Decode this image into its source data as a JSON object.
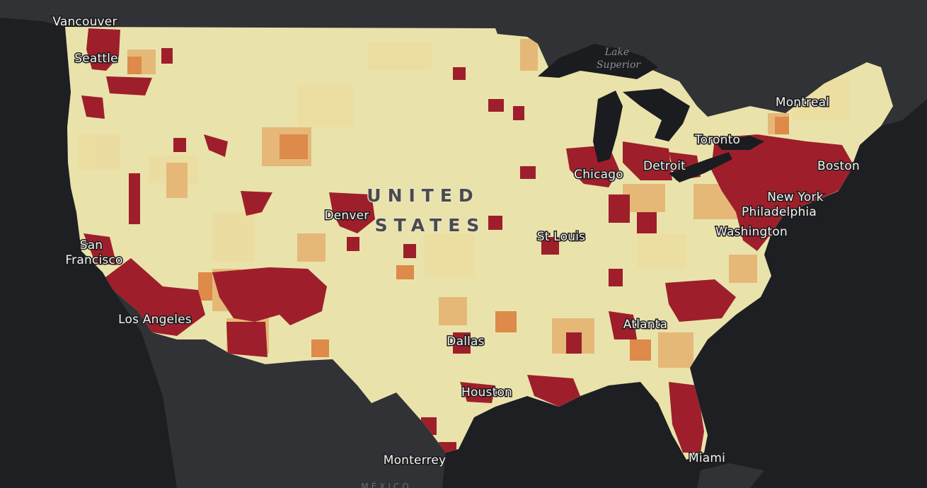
{
  "map": {
    "colors": {
      "background_ocean": "#1d1f23",
      "foreign_land": "#303236",
      "us_base": "#e9e3ab",
      "class_low": "#ecdda0",
      "class_mid": "#e5b878",
      "class_high": "#dd8a4a",
      "class_top": "#9e1f2b",
      "lakes": "#1a1c20"
    },
    "country_label": {
      "line1": "UNITED",
      "line2": "STATES"
    },
    "water_labels": {
      "lake_superior_line1": "Lake",
      "lake_superior_line2": "Superior"
    },
    "foreign_labels": {
      "mexico": "MÉXICO"
    },
    "cities": {
      "vancouver": "Vancouver",
      "seattle": "Seattle",
      "san_francisco_line1": "San",
      "san_francisco_line2": "Francisco",
      "los_angeles": "Los Angeles",
      "denver": "Denver",
      "dallas": "Dallas",
      "houston": "Houston",
      "monterrey": "Monterrey",
      "st_louis": "St Louis",
      "chicago": "Chicago",
      "detroit": "Detroit",
      "toronto": "Toronto",
      "montreal": "Montreal",
      "boston": "Boston",
      "new_york": "New York",
      "philadelphia": "Philadelphia",
      "washington": "Washington",
      "atlanta": "Atlanta",
      "miami": "Miami"
    }
  }
}
